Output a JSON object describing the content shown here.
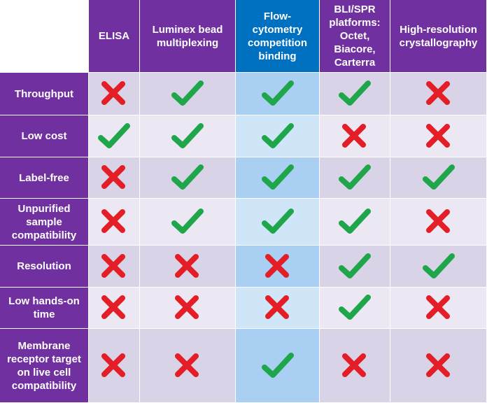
{
  "table": {
    "columns": [
      "ELISA",
      "Luminex bead multiplexing",
      "Flow-cytometry competition binding",
      "BLI/SPR platforms: Octet, Biacore, Carterra",
      "High-resolution crystallography"
    ],
    "rows": [
      {
        "label": "Throughput",
        "cells": [
          false,
          true,
          true,
          true,
          false
        ]
      },
      {
        "label": "Low cost",
        "cells": [
          true,
          true,
          true,
          false,
          false
        ]
      },
      {
        "label": "Label-free",
        "cells": [
          false,
          true,
          true,
          true,
          true
        ]
      },
      {
        "label": "Unpurified sample compatibility",
        "cells": [
          false,
          true,
          true,
          true,
          false
        ]
      },
      {
        "label": "Resolution",
        "cells": [
          false,
          false,
          false,
          true,
          true
        ]
      },
      {
        "label": "Low hands-on time",
        "cells": [
          false,
          false,
          false,
          true,
          false
        ]
      },
      {
        "label": "Membrane receptor target on live cell compatibility",
        "cells": [
          false,
          false,
          true,
          false,
          false
        ]
      }
    ]
  }
}
